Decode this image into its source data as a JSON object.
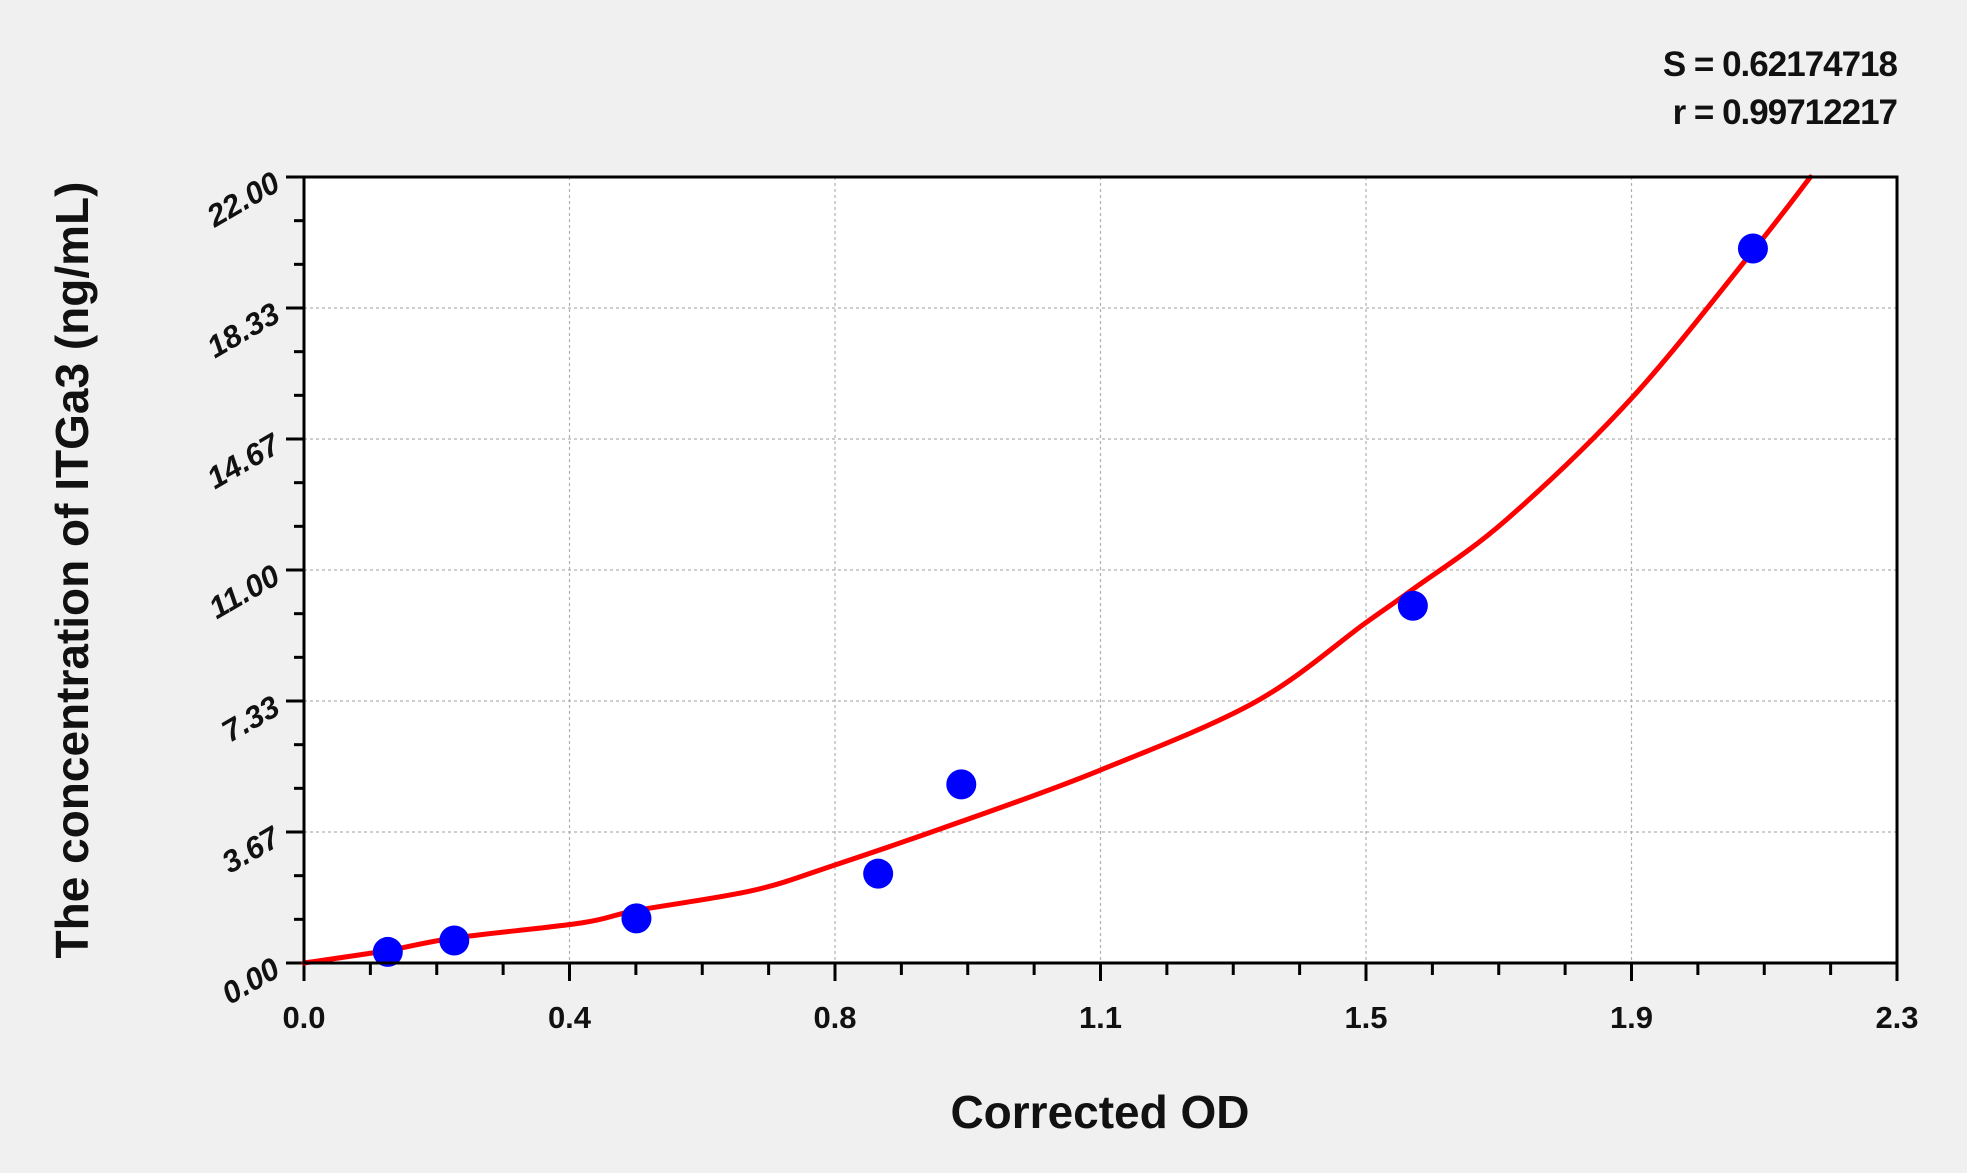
{
  "chart_data": {
    "type": "scatter",
    "title": "",
    "xlabel": "Corrected OD",
    "ylabel": "The concentration of ITGa3 (ng/mL)",
    "xlim": [
      0,
      2.3
    ],
    "ylim": [
      0,
      22
    ],
    "x_tick_labels": [
      "0.0",
      "0.4",
      "0.8",
      "1.1",
      "1.5",
      "1.9",
      "2.3"
    ],
    "y_tick_labels": [
      "0.00",
      "3.67",
      "7.33",
      "11.00",
      "14.67",
      "18.33",
      "22.00"
    ],
    "grid": true,
    "stats": {
      "s_text": "S = 0.62174718",
      "r_text": "r = 0.99712217"
    },
    "points": {
      "x": [
        0.121,
        0.217,
        0.48,
        0.829,
        0.949,
        1.601,
        2.092
      ],
      "y": [
        0.31,
        0.63,
        1.25,
        2.5,
        5,
        10,
        20
      ],
      "color": "#0000ff"
    },
    "fit_curve": {
      "x": [
        0,
        0.121,
        0.217,
        0.4,
        0.48,
        0.648,
        0.766,
        0.949,
        1.146,
        1.373,
        1.532,
        1.601,
        1.735,
        1.916,
        2.092,
        2.175
      ],
      "y": [
        0,
        0.35,
        0.7,
        1.12,
        1.47,
        2.03,
        2.74,
        3.96,
        5.37,
        7.3,
        9.51,
        10.46,
        12.39,
        15.79,
        19.93,
        22
      ],
      "color": "#ff0000"
    }
  }
}
